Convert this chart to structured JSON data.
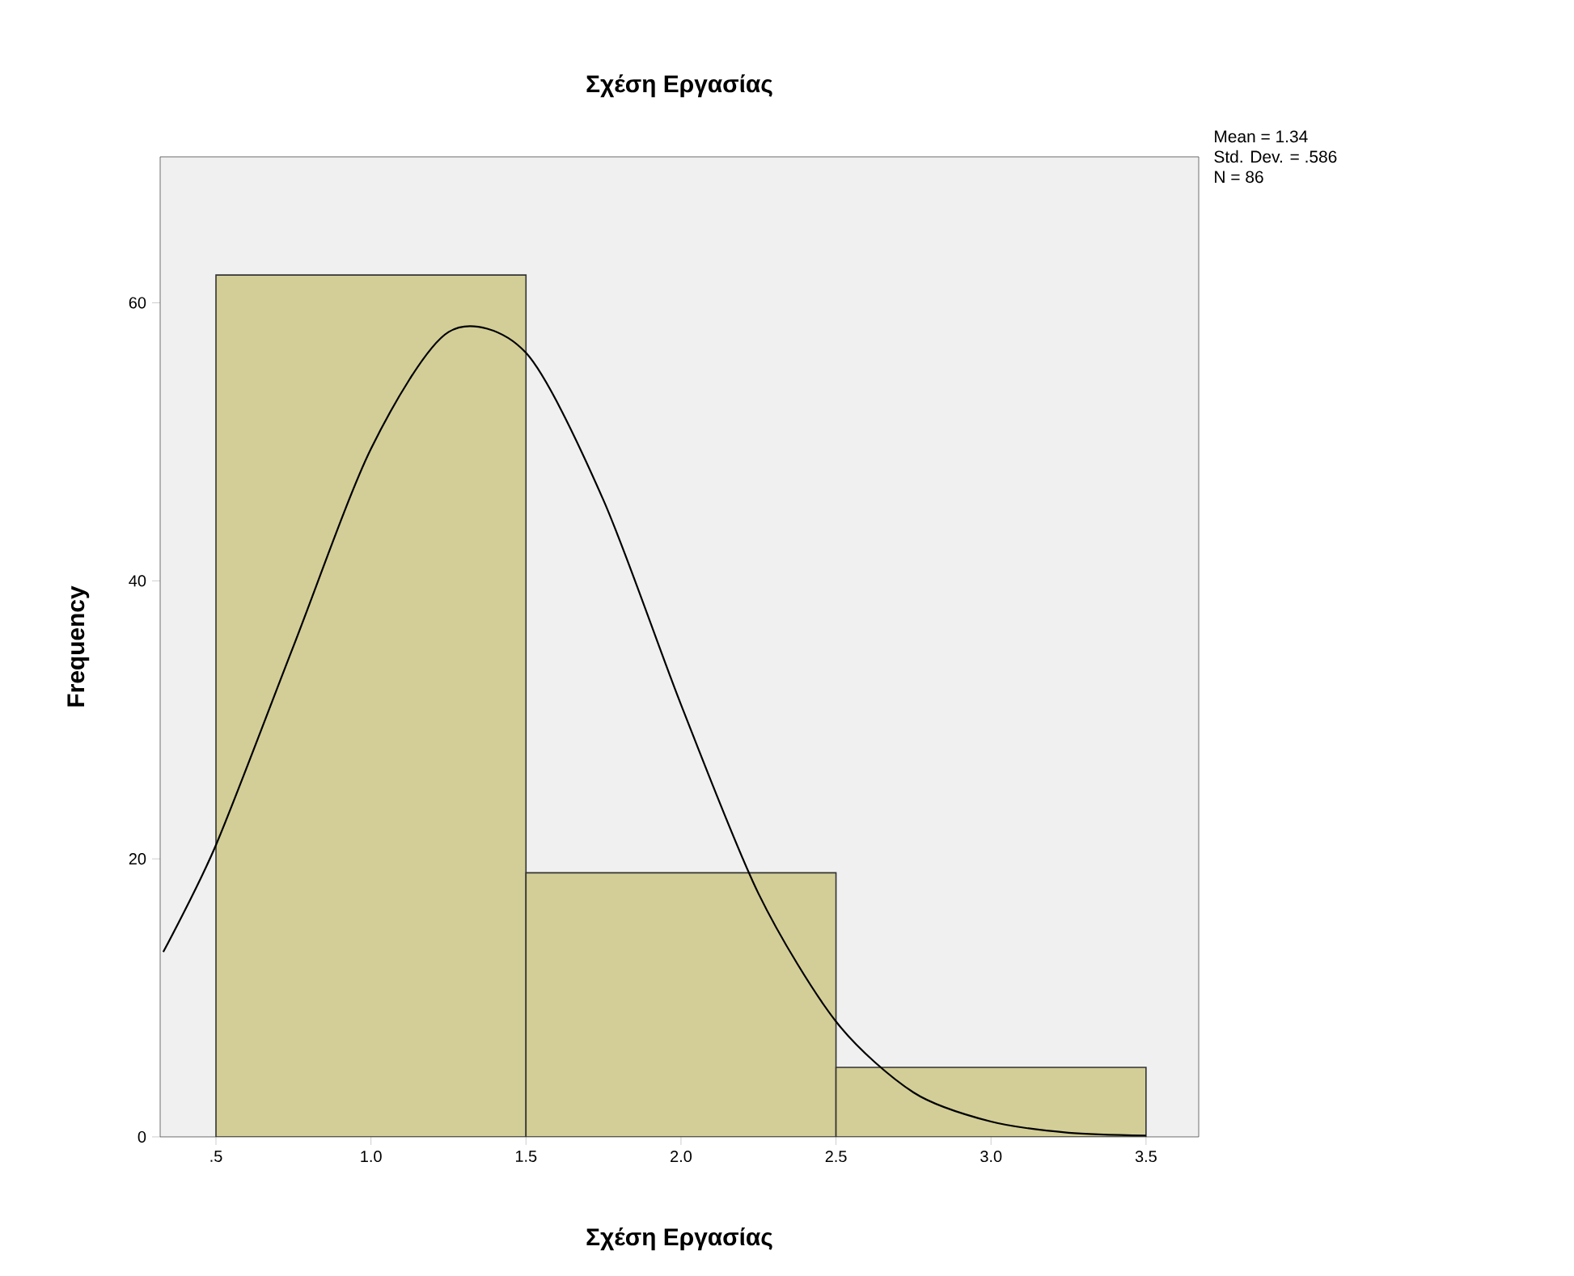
{
  "chart_data": {
    "type": "histogram",
    "title": "Σχέση Εργασίας",
    "xlabel": "Σχέση Εργασίας",
    "ylabel": "Frequency",
    "bins": [
      0.5,
      1.5,
      2.5,
      3.5
    ],
    "values": [
      62,
      19,
      5
    ],
    "color": "#d3ce97",
    "series": [
      {
        "type": "line",
        "color": "#000000",
        "x": [
          0.33,
          0.5,
          0.75,
          1.0,
          1.25,
          1.5,
          1.75,
          2.0,
          2.25,
          2.5,
          2.75,
          3.0,
          3.25,
          3.5
        ],
        "values": [
          13.3,
          21.0,
          35.3,
          49.5,
          57.9,
          56.4,
          45.8,
          31.1,
          17.5,
          8.3,
          3.2,
          1.1,
          0.3,
          0.1
        ]
      }
    ],
    "xlim": [
      0.32,
      3.67
    ],
    "ylim": [
      0,
      70.5
    ],
    "xticks": [
      {
        "value": 0.5,
        "label": ".5"
      },
      {
        "value": 1.0,
        "label": "1.0"
      },
      {
        "value": 1.5,
        "label": "1.5"
      },
      {
        "value": 2.0,
        "label": "2.0"
      },
      {
        "value": 2.5,
        "label": "2.5"
      },
      {
        "value": 3.0,
        "label": "3.0"
      },
      {
        "value": 3.5,
        "label": "3.5"
      }
    ],
    "yticks": [
      0,
      20,
      40,
      60
    ],
    "annotations": [
      "Mean = 1.34",
      "Std. Dev. = .586",
      "N = 86"
    ],
    "grid": false
  }
}
